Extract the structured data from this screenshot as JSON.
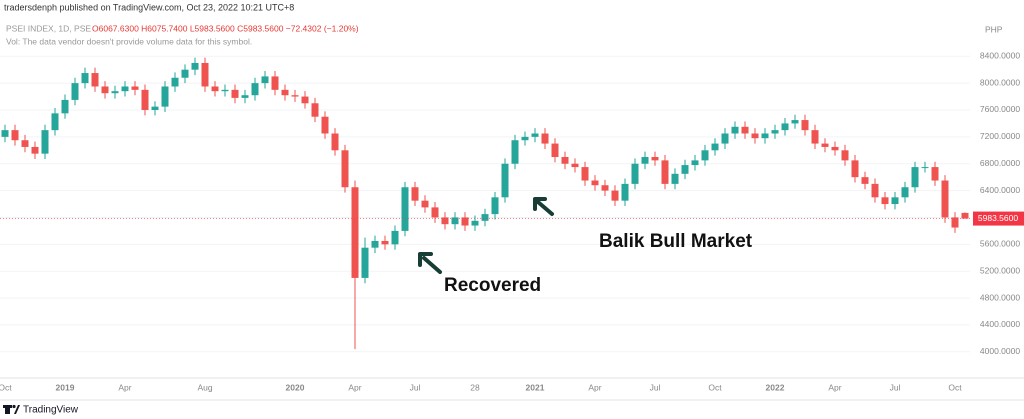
{
  "chart_data": {
    "type": "candlestick",
    "publisher": "tradersdenph published on TradingView.com, Oct 23, 2022 10:21 UTC+8",
    "title": "PSEI INDEX, 1D, PSE",
    "ohlc_text": "O6067.6300 H6075.7400 L5983.5600 C5983.5600 −72.4302 (−1.20%)",
    "volume_note": "Vol: The data vendor doesn't provide volume data for this symbol.",
    "currency": "PHP",
    "footer": "TradingView",
    "up_color": "#26a69a",
    "down_color": "#ef5350",
    "grid": true,
    "categories": [
      "Oct",
      null,
      null,
      null,
      null,
      null,
      "2019",
      null,
      null,
      null,
      null,
      null,
      "Apr",
      null,
      null,
      null,
      null,
      null,
      null,
      null,
      "Aug",
      null,
      null,
      null,
      null,
      null,
      null,
      null,
      null,
      "2020",
      null,
      null,
      null,
      null,
      null,
      "Apr",
      null,
      null,
      null,
      null,
      null,
      "Jul",
      null,
      null,
      null,
      null,
      null,
      "28",
      null,
      null,
      null,
      null,
      null,
      "2021",
      null,
      null,
      null,
      null,
      null,
      "Apr",
      null,
      null,
      null,
      null,
      null,
      "Jul",
      null,
      null,
      null,
      null,
      null,
      "Oct",
      null,
      null,
      null,
      null,
      null,
      "2022",
      null,
      null,
      null,
      null,
      null,
      "Apr",
      null,
      null,
      null,
      null,
      null,
      "Jul",
      null,
      null,
      null,
      null,
      null,
      "Oct",
      null
    ],
    "open": [
      7200,
      7300,
      7150,
      7050,
      6950,
      7300,
      7550,
      7750,
      8000,
      8150,
      7950,
      7850,
      7880,
      7950,
      7900,
      7600,
      7650,
      7950,
      8080,
      8200,
      8300,
      7950,
      7880,
      7900,
      7780,
      7820,
      8000,
      8100,
      7900,
      7820,
      7800,
      7700,
      7500,
      7250,
      7000,
      6450,
      5100,
      5550,
      5650,
      5600,
      5800,
      6450,
      6250,
      6150,
      6000,
      5900,
      6000,
      5880,
      5950,
      6050,
      6300,
      6800,
      7150,
      7200,
      7250,
      7100,
      6900,
      6800,
      6750,
      6550,
      6480,
      6400,
      6250,
      6500,
      6800,
      6900,
      6850,
      6500,
      6650,
      6780,
      6850,
      7000,
      7100,
      7250,
      7350,
      7250,
      7180,
      7250,
      7300,
      7400,
      7450,
      7300,
      7100,
      7050,
      7000,
      6850,
      6600,
      6500,
      6300,
      6200,
      6300,
      6450,
      6750,
      6750,
      6550,
      6000,
      6067.63
    ],
    "high": [
      7380,
      7380,
      7230,
      7130,
      7380,
      7630,
      7830,
      8080,
      8230,
      8230,
      8030,
      7960,
      8030,
      8030,
      7980,
      7730,
      8030,
      8160,
      8280,
      8380,
      8380,
      8030,
      7980,
      7980,
      7900,
      8080,
      8180,
      8180,
      7980,
      7900,
      7880,
      7780,
      7580,
      7330,
      7080,
      6550,
      5700,
      5730,
      5730,
      5880,
      6530,
      6530,
      6330,
      6230,
      6080,
      6080,
      6080,
      6030,
      6130,
      6380,
      6880,
      7230,
      7280,
      7330,
      7330,
      7180,
      6980,
      6880,
      6830,
      6630,
      6560,
      6480,
      6580,
      6880,
      6980,
      6980,
      6930,
      6730,
      6860,
      6930,
      7080,
      7180,
      7330,
      7430,
      7430,
      7330,
      7330,
      7380,
      7480,
      7530,
      7530,
      7380,
      7180,
      7130,
      7080,
      6930,
      6680,
      6580,
      6380,
      6380,
      6530,
      6830,
      6830,
      6830,
      6630,
      6080,
      6075.74
    ],
    "low": [
      7120,
      7070,
      6970,
      6870,
      6870,
      7220,
      7470,
      7670,
      7920,
      7870,
      7770,
      7770,
      7800,
      7820,
      7520,
      7520,
      7570,
      7870,
      8000,
      8120,
      7870,
      7800,
      7800,
      7700,
      7700,
      7740,
      7920,
      7820,
      7740,
      7720,
      7620,
      7420,
      7170,
      6920,
      6370,
      4040,
      5020,
      5470,
      5520,
      5520,
      5720,
      6170,
      6070,
      5920,
      5820,
      5820,
      5800,
      5800,
      5870,
      5970,
      6220,
      6720,
      7070,
      7120,
      7020,
      6820,
      6720,
      6670,
      6470,
      6400,
      6320,
      6170,
      6170,
      6420,
      6720,
      6770,
      6420,
      6420,
      6570,
      6700,
      6770,
      6920,
      7020,
      7170,
      7170,
      7100,
      7100,
      7170,
      7220,
      7320,
      7220,
      7020,
      6970,
      6920,
      6770,
      6520,
      6420,
      6220,
      6120,
      6120,
      6220,
      6370,
      6670,
      6470,
      5920,
      5770,
      5983.56
    ],
    "close": [
      7300,
      7150,
      7050,
      6950,
      7300,
      7550,
      7750,
      8000,
      8150,
      7950,
      7850,
      7880,
      7950,
      7900,
      7600,
      7650,
      7950,
      8080,
      8200,
      8300,
      7950,
      7880,
      7900,
      7780,
      7820,
      8000,
      8100,
      7900,
      7820,
      7800,
      7700,
      7500,
      7250,
      7000,
      6450,
      5100,
      5550,
      5650,
      5600,
      5800,
      6450,
      6250,
      6150,
      6000,
      5900,
      6000,
      5880,
      5950,
      6050,
      6300,
      6800,
      7150,
      7200,
      7250,
      7100,
      6900,
      6800,
      6750,
      6550,
      6480,
      6400,
      6250,
      6500,
      6800,
      6900,
      6850,
      6500,
      6650,
      6780,
      6850,
      7000,
      7100,
      7250,
      7350,
      7250,
      7180,
      7250,
      7300,
      7400,
      7450,
      7300,
      7100,
      7050,
      7000,
      6850,
      6600,
      6500,
      6300,
      6200,
      6300,
      6450,
      6750,
      6750,
      6550,
      6000,
      5850,
      5983.56
    ],
    "ylim": [
      3610,
      8910
    ],
    "yticks": [
      {
        "value": 4000,
        "label": "4000.0000"
      },
      {
        "value": 4400,
        "label": "4400.0000"
      },
      {
        "value": 4800,
        "label": "4800.0000"
      },
      {
        "value": 5200,
        "label": "5200.0000"
      },
      {
        "value": 5600,
        "label": "5600.0000"
      },
      {
        "value": 6000,
        "label": "6000.0000"
      },
      {
        "value": 6400,
        "label": "6400.0000"
      },
      {
        "value": 6800,
        "label": "6800.0000"
      },
      {
        "value": 7200,
        "label": "7200.0000"
      },
      {
        "value": 7600,
        "label": "7600.0000"
      },
      {
        "value": 8000,
        "label": "8000.0000"
      },
      {
        "value": 8400,
        "label": "8400.0000"
      }
    ],
    "last_price": {
      "value": 5983.56,
      "label": "5983.5600"
    },
    "last_price_color": "#f23645",
    "annotations": [
      {
        "text": "Recovered"
      },
      {
        "text": "Balik Bull Market"
      }
    ]
  }
}
